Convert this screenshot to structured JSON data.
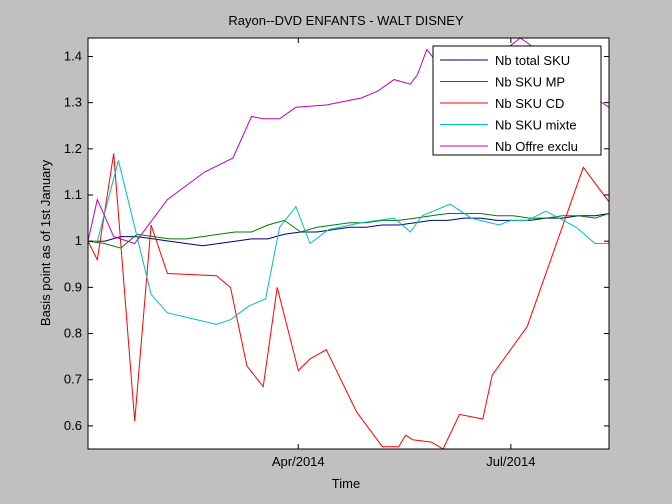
{
  "chart_data": {
    "type": "line",
    "title": "Rayon--DVD ENFANTS - WALT DISNEY",
    "xlabel": "Time",
    "ylabel": "Basis point as of 1st January",
    "xlim": [
      "2014-01-01",
      "2014-08-12"
    ],
    "ylim": [
      0.55,
      1.44
    ],
    "x_ticks": [
      {
        "label": "Apr/2014",
        "date": "2014-04-01"
      },
      {
        "label": "Jul/2014",
        "date": "2014-07-01"
      }
    ],
    "y_ticks": [
      0.6,
      0.7,
      0.8,
      0.9,
      1,
      1.1,
      1.2,
      1.3,
      1.4
    ],
    "y_tick_labels": [
      "0.6",
      "0.7",
      "0.8",
      "0.9",
      "1",
      "1.1",
      "1.2",
      "1.3",
      "1.4"
    ],
    "grid": false,
    "legend_position": "top-right",
    "series": [
      {
        "name": "Nb total SKU",
        "color": "#00007f",
        "points": [
          [
            "2014-01-01",
            1.0
          ],
          [
            "2014-01-08",
            1.0
          ],
          [
            "2014-01-15",
            1.01
          ],
          [
            "2014-01-22",
            1.01
          ],
          [
            "2014-01-29",
            1.005
          ],
          [
            "2014-02-05",
            1.0
          ],
          [
            "2014-02-12",
            0.995
          ],
          [
            "2014-02-19",
            0.99
          ],
          [
            "2014-02-26",
            0.995
          ],
          [
            "2014-03-05",
            1.0
          ],
          [
            "2014-03-12",
            1.005
          ],
          [
            "2014-03-19",
            1.005
          ],
          [
            "2014-03-26",
            1.015
          ],
          [
            "2014-04-02",
            1.02
          ],
          [
            "2014-04-09",
            1.02
          ],
          [
            "2014-04-16",
            1.025
          ],
          [
            "2014-04-23",
            1.03
          ],
          [
            "2014-04-30",
            1.03
          ],
          [
            "2014-05-07",
            1.035
          ],
          [
            "2014-05-14",
            1.035
          ],
          [
            "2014-05-21",
            1.04
          ],
          [
            "2014-05-28",
            1.045
          ],
          [
            "2014-06-04",
            1.045
          ],
          [
            "2014-06-11",
            1.05
          ],
          [
            "2014-06-18",
            1.05
          ],
          [
            "2014-06-25",
            1.045
          ],
          [
            "2014-07-02",
            1.045
          ],
          [
            "2014-07-09",
            1.045
          ],
          [
            "2014-07-16",
            1.05
          ],
          [
            "2014-07-23",
            1.05
          ],
          [
            "2014-07-30",
            1.055
          ],
          [
            "2014-08-06",
            1.055
          ],
          [
            "2014-08-12",
            1.06
          ]
        ]
      },
      {
        "name": "Nb SKU MP",
        "color": "#007f00",
        "points": [
          [
            "2014-01-01",
            1.0
          ],
          [
            "2014-01-08",
            0.995
          ],
          [
            "2014-01-15",
            0.985
          ],
          [
            "2014-01-22",
            1.015
          ],
          [
            "2014-01-29",
            1.01
          ],
          [
            "2014-02-05",
            1.005
          ],
          [
            "2014-02-12",
            1.005
          ],
          [
            "2014-02-19",
            1.01
          ],
          [
            "2014-02-26",
            1.015
          ],
          [
            "2014-03-05",
            1.02
          ],
          [
            "2014-03-12",
            1.02
          ],
          [
            "2014-03-19",
            1.035
          ],
          [
            "2014-03-26",
            1.045
          ],
          [
            "2014-04-02",
            1.02
          ],
          [
            "2014-04-09",
            1.03
          ],
          [
            "2014-04-16",
            1.035
          ],
          [
            "2014-04-23",
            1.04
          ],
          [
            "2014-04-30",
            1.04
          ],
          [
            "2014-05-07",
            1.045
          ],
          [
            "2014-05-14",
            1.045
          ],
          [
            "2014-05-21",
            1.05
          ],
          [
            "2014-05-28",
            1.055
          ],
          [
            "2014-06-04",
            1.06
          ],
          [
            "2014-06-11",
            1.06
          ],
          [
            "2014-06-18",
            1.06
          ],
          [
            "2014-06-25",
            1.055
          ],
          [
            "2014-07-02",
            1.055
          ],
          [
            "2014-07-09",
            1.05
          ],
          [
            "2014-07-16",
            1.05
          ],
          [
            "2014-07-23",
            1.055
          ],
          [
            "2014-07-30",
            1.055
          ],
          [
            "2014-08-06",
            1.05
          ],
          [
            "2014-08-12",
            1.06
          ]
        ]
      },
      {
        "name": "Nb SKU CD",
        "color": "#ff0000",
        "points": [
          [
            "2014-01-01",
            1.0
          ],
          [
            "2014-01-05",
            0.96
          ],
          [
            "2014-01-12",
            1.19
          ],
          [
            "2014-01-21",
            0.61
          ],
          [
            "2014-01-28",
            1.035
          ],
          [
            "2014-02-04",
            0.93
          ],
          [
            "2014-02-25",
            0.925
          ],
          [
            "2014-03-03",
            0.9
          ],
          [
            "2014-03-10",
            0.73
          ],
          [
            "2014-03-17",
            0.685
          ],
          [
            "2014-03-23",
            0.9
          ],
          [
            "2014-04-01",
            0.72
          ],
          [
            "2014-04-06",
            0.745
          ],
          [
            "2014-04-13",
            0.765
          ],
          [
            "2014-04-26",
            0.63
          ],
          [
            "2014-05-07",
            0.555
          ],
          [
            "2014-05-14",
            0.555
          ],
          [
            "2014-05-17",
            0.58
          ],
          [
            "2014-05-20",
            0.57
          ],
          [
            "2014-05-28",
            0.565
          ],
          [
            "2014-06-02",
            0.55
          ],
          [
            "2014-06-09",
            0.625
          ],
          [
            "2014-06-19",
            0.615
          ],
          [
            "2014-06-23",
            0.71
          ],
          [
            "2014-07-08",
            0.815
          ],
          [
            "2014-08-01",
            1.16
          ],
          [
            "2014-08-12",
            1.085
          ]
        ]
      },
      {
        "name": "Nb SKU mixte",
        "color": "#00bfbf",
        "points": [
          [
            "2014-01-01",
            1.0
          ],
          [
            "2014-01-05",
            1.0
          ],
          [
            "2014-01-14",
            1.175
          ],
          [
            "2014-01-28",
            0.885
          ],
          [
            "2014-02-04",
            0.845
          ],
          [
            "2014-02-25",
            0.82
          ],
          [
            "2014-03-03",
            0.83
          ],
          [
            "2014-03-11",
            0.86
          ],
          [
            "2014-03-18",
            0.875
          ],
          [
            "2014-03-24",
            1.03
          ],
          [
            "2014-03-31",
            1.075
          ],
          [
            "2014-04-06",
            0.995
          ],
          [
            "2014-04-14",
            1.025
          ],
          [
            "2014-04-28",
            1.04
          ],
          [
            "2014-05-12",
            1.05
          ],
          [
            "2014-05-19",
            1.02
          ],
          [
            "2014-05-24",
            1.055
          ],
          [
            "2014-06-05",
            1.08
          ],
          [
            "2014-06-14",
            1.05
          ],
          [
            "2014-06-26",
            1.035
          ],
          [
            "2014-07-01",
            1.045
          ],
          [
            "2014-07-08",
            1.045
          ],
          [
            "2014-07-16",
            1.065
          ],
          [
            "2014-07-29",
            1.03
          ],
          [
            "2014-08-06",
            0.995
          ],
          [
            "2014-08-12",
            0.995
          ]
        ]
      },
      {
        "name": "Nb Offre exclu",
        "color": "#bf00bf",
        "points": [
          [
            "2014-01-01",
            1.0
          ],
          [
            "2014-01-05",
            1.09
          ],
          [
            "2014-01-12",
            1.01
          ],
          [
            "2014-01-21",
            0.995
          ],
          [
            "2014-02-04",
            1.09
          ],
          [
            "2014-02-20",
            1.15
          ],
          [
            "2014-03-04",
            1.18
          ],
          [
            "2014-03-12",
            1.27
          ],
          [
            "2014-03-17",
            1.265
          ],
          [
            "2014-03-24",
            1.265
          ],
          [
            "2014-03-31",
            1.29
          ],
          [
            "2014-04-13",
            1.295
          ],
          [
            "2014-04-28",
            1.31
          ],
          [
            "2014-05-05",
            1.325
          ],
          [
            "2014-05-12",
            1.35
          ],
          [
            "2014-05-19",
            1.34
          ],
          [
            "2014-05-22",
            1.36
          ],
          [
            "2014-05-26",
            1.415
          ],
          [
            "2014-06-02",
            1.37
          ],
          [
            "2014-06-17",
            1.375
          ],
          [
            "2014-06-30",
            1.42
          ],
          [
            "2014-07-05",
            1.44
          ],
          [
            "2014-07-08",
            1.43
          ],
          [
            "2014-08-06",
            1.31
          ],
          [
            "2014-08-12",
            1.29
          ]
        ]
      }
    ]
  }
}
